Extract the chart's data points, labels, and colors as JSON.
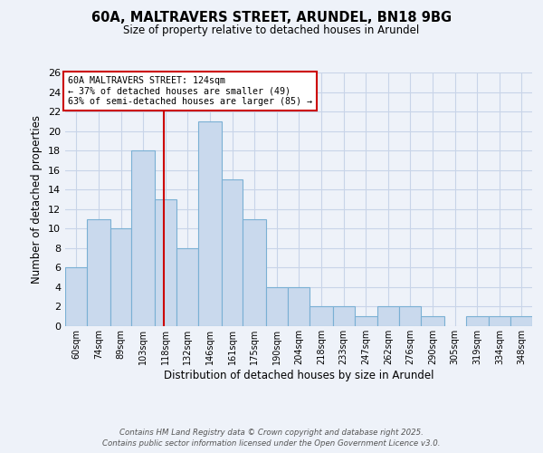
{
  "title1": "60A, MALTRAVERS STREET, ARUNDEL, BN18 9BG",
  "title2": "Size of property relative to detached houses in Arundel",
  "xlabel": "Distribution of detached houses by size in Arundel",
  "ylabel": "Number of detached properties",
  "bin_labels": [
    "60sqm",
    "74sqm",
    "89sqm",
    "103sqm",
    "118sqm",
    "132sqm",
    "146sqm",
    "161sqm",
    "175sqm",
    "190sqm",
    "204sqm",
    "218sqm",
    "233sqm",
    "247sqm",
    "262sqm",
    "276sqm",
    "290sqm",
    "305sqm",
    "319sqm",
    "334sqm",
    "348sqm"
  ],
  "bin_edges": [
    60,
    74,
    89,
    103,
    118,
    132,
    146,
    161,
    175,
    190,
    204,
    218,
    233,
    247,
    262,
    276,
    290,
    305,
    319,
    334,
    348
  ],
  "bar_heights": [
    6,
    11,
    10,
    18,
    13,
    8,
    21,
    15,
    11,
    4,
    4,
    2,
    2,
    1,
    2,
    2,
    1,
    0,
    1,
    1,
    1
  ],
  "bar_color": "#c9d9ed",
  "bar_edge_color": "#7ab0d4",
  "vline_x": 124,
  "vline_color": "#cc0000",
  "annotation_title": "60A MALTRAVERS STREET: 124sqm",
  "annotation_line2": "← 37% of detached houses are smaller (49)",
  "annotation_line3": "63% of semi-detached houses are larger (85) →",
  "annotation_box_color": "#ffffff",
  "annotation_box_edge": "#cc0000",
  "ylim": [
    0,
    26
  ],
  "yticks": [
    0,
    2,
    4,
    6,
    8,
    10,
    12,
    14,
    16,
    18,
    20,
    22,
    24,
    26
  ],
  "footer1": "Contains HM Land Registry data © Crown copyright and database right 2025.",
  "footer2": "Contains public sector information licensed under the Open Government Licence v3.0.",
  "background_color": "#eef2f9"
}
